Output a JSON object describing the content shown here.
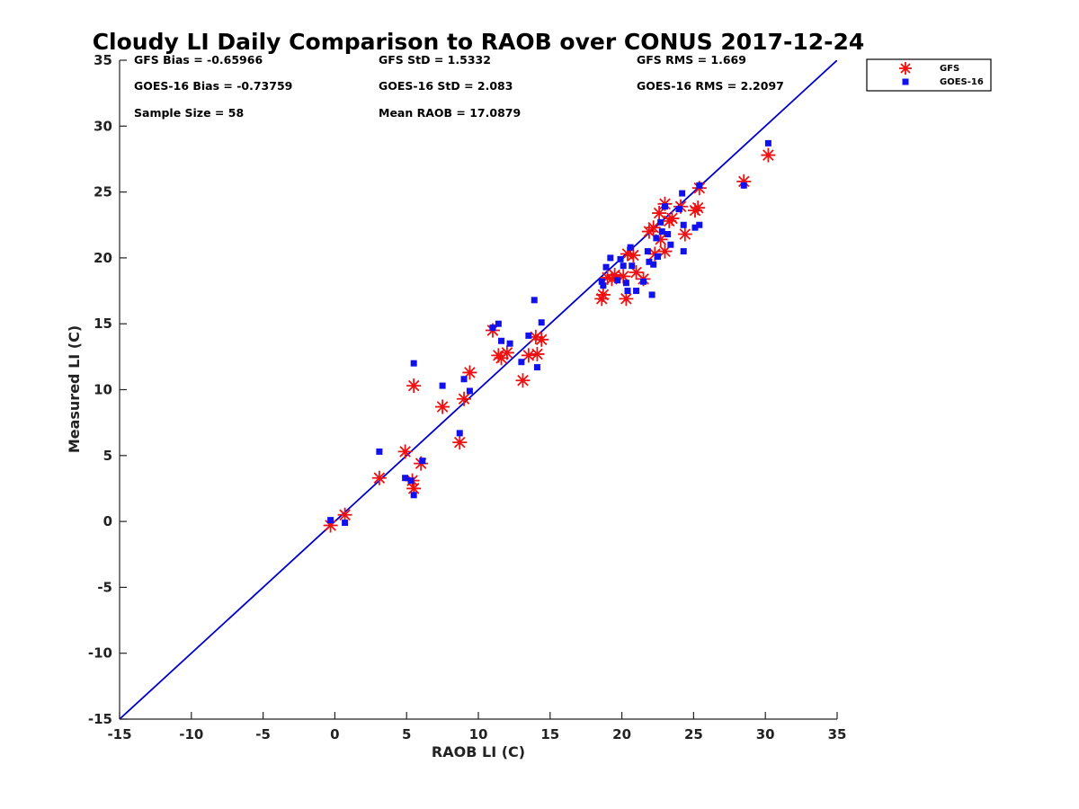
{
  "chart_data": {
    "type": "scatter",
    "title": "Cloudy LI Daily Comparison to RAOB over CONUS 2017-12-24",
    "xlabel": "RAOB LI (C)",
    "ylabel": "Measured LI (C)",
    "xlim": [
      -15,
      35
    ],
    "ylim": [
      -15,
      35
    ],
    "xticks": [
      -15,
      -10,
      -5,
      0,
      5,
      10,
      15,
      20,
      25,
      30,
      35
    ],
    "yticks": [
      -15,
      -10,
      -5,
      0,
      5,
      10,
      15,
      20,
      25,
      30,
      35
    ],
    "grid": false,
    "legend_position": "outside-top-right",
    "reference_line": {
      "x": [
        -15,
        35
      ],
      "y": [
        -15,
        35
      ],
      "color": "#0000cc"
    },
    "stats": [
      {
        "text": "GFS Bias = -0.65966"
      },
      {
        "text": "GFS StD = 1.5332"
      },
      {
        "text": "GFS RMS = 1.669"
      },
      {
        "text": "GOES-16 Bias = -0.73759"
      },
      {
        "text": "GOES-16 StD = 2.083"
      },
      {
        "text": "GOES-16 RMS = 2.2097"
      },
      {
        "text": "Sample Size = 58"
      },
      {
        "text": "Mean RAOB = 17.0879"
      }
    ],
    "series": [
      {
        "name": "GFS",
        "marker": "asterisk",
        "color": "#ee1111",
        "points": [
          [
            -0.3,
            -0.3
          ],
          [
            0.7,
            0.5
          ],
          [
            3.1,
            3.3
          ],
          [
            4.9,
            5.3
          ],
          [
            5.4,
            3.1
          ],
          [
            5.5,
            2.5
          ],
          [
            5.5,
            10.3
          ],
          [
            6.0,
            4.4
          ],
          [
            7.5,
            8.7
          ],
          [
            8.7,
            6.0
          ],
          [
            9.0,
            9.3
          ],
          [
            9.4,
            11.3
          ],
          [
            11.0,
            14.5
          ],
          [
            11.4,
            12.6
          ],
          [
            11.6,
            12.4
          ],
          [
            12.0,
            12.8
          ],
          [
            13.1,
            10.7
          ],
          [
            13.5,
            12.6
          ],
          [
            14.0,
            14.0
          ],
          [
            14.1,
            12.7
          ],
          [
            14.4,
            13.8
          ],
          [
            18.6,
            16.9
          ],
          [
            18.7,
            17.2
          ],
          [
            19.0,
            18.5
          ],
          [
            19.3,
            18.4
          ],
          [
            19.5,
            18.7
          ],
          [
            20.1,
            18.6
          ],
          [
            20.3,
            16.9
          ],
          [
            20.4,
            20.3
          ],
          [
            20.8,
            20.2
          ],
          [
            21.0,
            18.9
          ],
          [
            21.5,
            18.4
          ],
          [
            21.9,
            22.0
          ],
          [
            22.2,
            22.3
          ],
          [
            22.3,
            20.3
          ],
          [
            22.6,
            23.4
          ],
          [
            22.7,
            21.4
          ],
          [
            23.0,
            24.1
          ],
          [
            23.0,
            20.5
          ],
          [
            23.3,
            22.8
          ],
          [
            23.5,
            23.0
          ],
          [
            24.1,
            23.9
          ],
          [
            24.4,
            21.8
          ],
          [
            25.1,
            23.6
          ],
          [
            25.3,
            23.8
          ],
          [
            25.4,
            25.3
          ],
          [
            28.5,
            25.8
          ],
          [
            30.2,
            27.8
          ]
        ]
      },
      {
        "name": "GOES-16",
        "marker": "square",
        "color": "#1111ee",
        "points": [
          [
            -0.3,
            0.1
          ],
          [
            0.7,
            -0.1
          ],
          [
            3.1,
            5.3
          ],
          [
            4.9,
            3.3
          ],
          [
            5.3,
            3.1
          ],
          [
            5.5,
            2.0
          ],
          [
            5.5,
            12.0
          ],
          [
            6.1,
            4.6
          ],
          [
            7.5,
            10.3
          ],
          [
            8.7,
            6.7
          ],
          [
            9.0,
            10.8
          ],
          [
            9.4,
            9.9
          ],
          [
            11.0,
            14.7
          ],
          [
            11.4,
            15.0
          ],
          [
            11.6,
            13.7
          ],
          [
            12.2,
            13.5
          ],
          [
            13.0,
            12.1
          ],
          [
            13.5,
            14.1
          ],
          [
            13.9,
            16.8
          ],
          [
            14.1,
            11.7
          ],
          [
            14.4,
            15.1
          ],
          [
            18.6,
            18.2
          ],
          [
            18.7,
            17.9
          ],
          [
            18.9,
            19.3
          ],
          [
            19.2,
            20.0
          ],
          [
            19.7,
            18.3
          ],
          [
            19.9,
            19.9
          ],
          [
            20.1,
            19.4
          ],
          [
            20.3,
            18.1
          ],
          [
            20.4,
            17.5
          ],
          [
            20.6,
            20.8
          ],
          [
            20.7,
            19.4
          ],
          [
            21.0,
            17.5
          ],
          [
            21.5,
            18.2
          ],
          [
            21.8,
            20.5
          ],
          [
            21.9,
            19.7
          ],
          [
            22.1,
            17.2
          ],
          [
            22.2,
            19.5
          ],
          [
            22.4,
            21.5
          ],
          [
            22.5,
            20.1
          ],
          [
            22.7,
            22.7
          ],
          [
            22.8,
            22.0
          ],
          [
            23.0,
            23.9
          ],
          [
            23.2,
            21.8
          ],
          [
            23.4,
            21.0
          ],
          [
            24.0,
            23.7
          ],
          [
            24.2,
            24.9
          ],
          [
            24.3,
            22.5
          ],
          [
            24.3,
            20.5
          ],
          [
            25.1,
            22.3
          ],
          [
            25.4,
            22.5
          ],
          [
            25.4,
            25.5
          ],
          [
            28.5,
            25.5
          ],
          [
            30.2,
            28.7
          ]
        ]
      }
    ]
  }
}
